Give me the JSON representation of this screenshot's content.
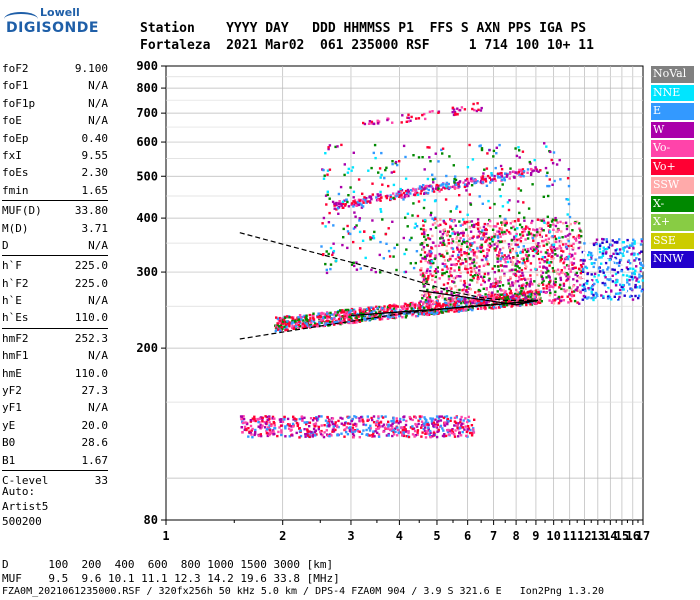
{
  "logo": {
    "line1": "Lowell",
    "line2": "DIGISONDE"
  },
  "header": {
    "line1": "Station    YYYY DAY   DDD HHMMSS P1  FFS S AXN PPS IGA PS",
    "line2": "Fortaleza  2021 Mar02  061 235000 RSF     1 714 100 10+ 11"
  },
  "params": [
    {
      "name": "foF2",
      "value": "9.100"
    },
    {
      "name": "foF1",
      "value": "N/A"
    },
    {
      "name": "foF1p",
      "value": "N/A"
    },
    {
      "name": "foE",
      "value": "N/A"
    },
    {
      "name": "foEp",
      "value": "0.40"
    },
    {
      "name": "fxI",
      "value": "9.55"
    },
    {
      "name": "foEs",
      "value": "2.30"
    },
    {
      "name": "fmin",
      "value": "1.65"
    },
    {
      "name": "MUF(D)",
      "value": "33.80"
    },
    {
      "name": "M(D)",
      "value": "3.71"
    },
    {
      "name": "D",
      "value": "N/A"
    },
    {
      "name": "h`F",
      "value": "225.0"
    },
    {
      "name": "h`F2",
      "value": "225.0"
    },
    {
      "name": "h`E",
      "value": "N/A"
    },
    {
      "name": "h`Es",
      "value": "110.0"
    },
    {
      "name": "hmF2",
      "value": "252.3"
    },
    {
      "name": "hmF1",
      "value": "N/A"
    },
    {
      "name": "hmE",
      "value": "110.0"
    },
    {
      "name": "yF2",
      "value": "27.3"
    },
    {
      "name": "yF1",
      "value": "N/A"
    },
    {
      "name": "yE",
      "value": "20.0"
    },
    {
      "name": "B0",
      "value": "28.6"
    },
    {
      "name": "B1",
      "value": "1.67"
    },
    {
      "name": "C-level",
      "value": "33"
    }
  ],
  "auto": {
    "line1": "Auto:",
    "line2": "Artist5",
    "line3": "500200"
  },
  "legend": [
    {
      "label": "NoVal",
      "color": "#808080"
    },
    {
      "label": "NNE",
      "color": "#00e5ff"
    },
    {
      "label": "E",
      "color": "#3399ff"
    },
    {
      "label": "W",
      "color": "#aa00aa"
    },
    {
      "label": "Vo-",
      "color": "#ff44aa"
    },
    {
      "label": "Vo+",
      "color": "#ff0033"
    },
    {
      "label": "SSW",
      "color": "#ffaaaa"
    },
    {
      "label": "X-",
      "color": "#008800"
    },
    {
      "label": "X+",
      "color": "#88cc44"
    },
    {
      "label": "SSE",
      "color": "#cccc00"
    },
    {
      "label": "NNW",
      "color": "#2200cc"
    }
  ],
  "footer": {
    "d_line": "D      100  200  400  600  800 1000 1500 3000 [km]",
    "muf_line": "MUF    9.5  9.6 10.1 11.1 12.3 14.2 19.6 33.8 [MHz]",
    "info_line": "FZA0M_2021061235000.RSF / 320fx256h 50 kHz 5.0 km / DPS-4 FZA0M 904 / 3.9 S 321.6 E   Ion2Png 1.3.20"
  },
  "chart_data": {
    "type": "scatter",
    "title": "",
    "xlabel": "",
    "ylabel": "",
    "xlim": [
      1,
      17
    ],
    "ylim": [
      80,
      900
    ],
    "x_scale": "log",
    "y_scale": "log",
    "x_ticks": [
      1,
      2,
      3,
      4,
      5,
      6,
      7,
      8,
      9,
      10,
      11,
      12,
      13,
      14,
      15,
      16,
      17
    ],
    "y_ticks": [
      80,
      200,
      300,
      400,
      500,
      600,
      700,
      800,
      900
    ],
    "y_tick_labels": [
      "80",
      "200",
      "300",
      "400",
      "500",
      "600",
      "700",
      "800",
      "900"
    ],
    "grid": true,
    "legend_placement": "right",
    "clusters": [
      {
        "name": "Es",
        "color_mix": [
          "#aa00aa",
          "#ff44aa",
          "#3399ff",
          "#ff0033"
        ],
        "x": [
          1.55,
          6.2
        ],
        "y": [
          125,
          140
        ],
        "density": 0.8
      },
      {
        "name": "F-trace",
        "color_mix": [
          "#ff0033",
          "#ff0033",
          "#ff44aa",
          "#008800",
          "#3399ff"
        ],
        "x": [
          1.9,
          9.2
        ],
        "y": [
          215,
          270
        ],
        "density": 0.6
      },
      {
        "name": "F-upper",
        "color_mix": [
          "#ff0033",
          "#ff44aa",
          "#aa00aa",
          "#008800",
          "#ffaaaa"
        ],
        "x": [
          4.5,
          11.8
        ],
        "y": [
          255,
          400
        ],
        "density": 0.5
      },
      {
        "name": "spread-F",
        "color_mix": [
          "#2200cc",
          "#3399ff",
          "#00e5ff",
          "#aa00aa",
          "#ffffff"
        ],
        "x": [
          11.8,
          16.9
        ],
        "y": [
          260,
          360
        ],
        "density": 0.55
      },
      {
        "name": "multi-hop",
        "color_mix": [
          "#ff0033",
          "#ff44aa",
          "#aa00aa",
          "#3399ff"
        ],
        "x": [
          2.7,
          9.2
        ],
        "y": [
          430,
          520
        ],
        "density": 0.25
      },
      {
        "name": "oblique",
        "color_mix": [
          "#ff0033",
          "#aa00aa",
          "#ff44aa"
        ],
        "x": [
          3.2,
          6.5
        ],
        "y": [
          660,
          730
        ],
        "density": 0.15
      },
      {
        "name": "scatter-mid",
        "color_mix": [
          "#aa00aa",
          "#ff0033",
          "#3399ff",
          "#00e5ff",
          "#008800"
        ],
        "x": [
          2.5,
          11.0
        ],
        "y": [
          300,
          600
        ],
        "density": 0.08
      }
    ],
    "profile_curve": [
      [
        1.55,
        210
      ],
      [
        2.5,
        225
      ],
      [
        4,
        240
      ],
      [
        6,
        250
      ],
      [
        8,
        255
      ],
      [
        9.1,
        258
      ]
    ],
    "profile_curve_upper": [
      [
        1.55,
        370
      ],
      [
        2.5,
        330
      ],
      [
        3.5,
        305
      ],
      [
        4.5,
        285
      ],
      [
        5.5,
        270
      ],
      [
        6.5,
        262
      ],
      [
        7.5,
        258
      ],
      [
        9.1,
        258
      ]
    ]
  }
}
